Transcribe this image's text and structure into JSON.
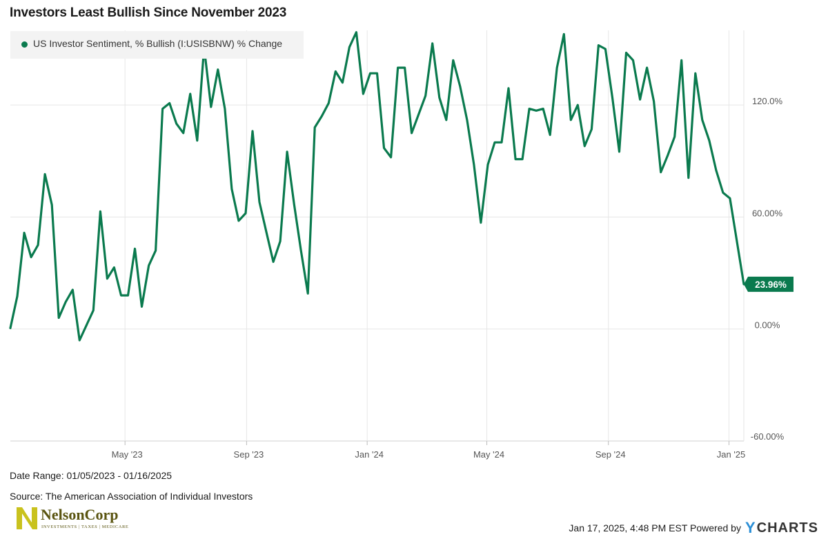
{
  "header": {
    "title": "Investors Least Bullish Since November 2023"
  },
  "legend": {
    "label": "US Investor Sentiment, % Bullish (I:USISBNW) % Change"
  },
  "colors": {
    "series": "#0a7a4e",
    "grid": "#e6e6e6",
    "legend_bg": "#f3f3f3",
    "badge": "#0a7a4e"
  },
  "chart_data": {
    "type": "line",
    "title": "Investors Least Bullish Since November 2023",
    "x_unit": "week",
    "x_start": "2023-01-05",
    "x_end": "2025-01-16",
    "ylim": [
      -60,
      160
    ],
    "y_ticks": [
      120,
      60,
      0,
      -60
    ],
    "y_tick_labels": [
      "120.0%",
      "60.00%",
      "0.00%",
      "-60.00%"
    ],
    "x_ticks": [
      "2023-05-01",
      "2023-09-01",
      "2024-01-01",
      "2024-05-01",
      "2024-09-01",
      "2025-01-01"
    ],
    "x_tick_labels": [
      "May '23",
      "Sep '23",
      "Jan '24",
      "May '24",
      "Sep '24",
      "Jan '25"
    ],
    "grid": true,
    "legend_position": "top-left",
    "last_value_label": "23.96%",
    "series": [
      {
        "name": "US Investor Sentiment, % Bullish (I:USISBNW) % Change",
        "values": [
          0.5,
          17.5,
          51.5,
          38.5,
          45,
          83,
          66.5,
          6,
          14.5,
          21,
          -6,
          2,
          10,
          63,
          27,
          33,
          18,
          18,
          43,
          12,
          34,
          42,
          118,
          121,
          110,
          105,
          126,
          101,
          151,
          119,
          139,
          118,
          75,
          58,
          62,
          106,
          68,
          52,
          36,
          47,
          95,
          67,
          42,
          19,
          108,
          114,
          121,
          138,
          132,
          151,
          159,
          126,
          137,
          137,
          97,
          92,
          140,
          140,
          105,
          115,
          125,
          153,
          124,
          112,
          144,
          130,
          112,
          88,
          57,
          88,
          100,
          100,
          129,
          91,
          91,
          118,
          117,
          118,
          104,
          140,
          158,
          112,
          120,
          98,
          107,
          152,
          150,
          124,
          95,
          148,
          144,
          123,
          140,
          122,
          84,
          93,
          103,
          144,
          81,
          137,
          112,
          101,
          85,
          73,
          70,
          23.96
        ]
      }
    ]
  },
  "footer": {
    "date_range": "Date Range: 01/05/2023 - 01/16/2025",
    "source": "Source: The American Association of Individual Investors",
    "logo_text": "NelsonCorp",
    "logo_tagline": "INVESTMENTS | TAXES | MEDICARE",
    "timestamp": "Jan 17, 2025, 4:48 PM EST Powered by",
    "brand": "CHARTS",
    "brand_mark": "Y"
  }
}
